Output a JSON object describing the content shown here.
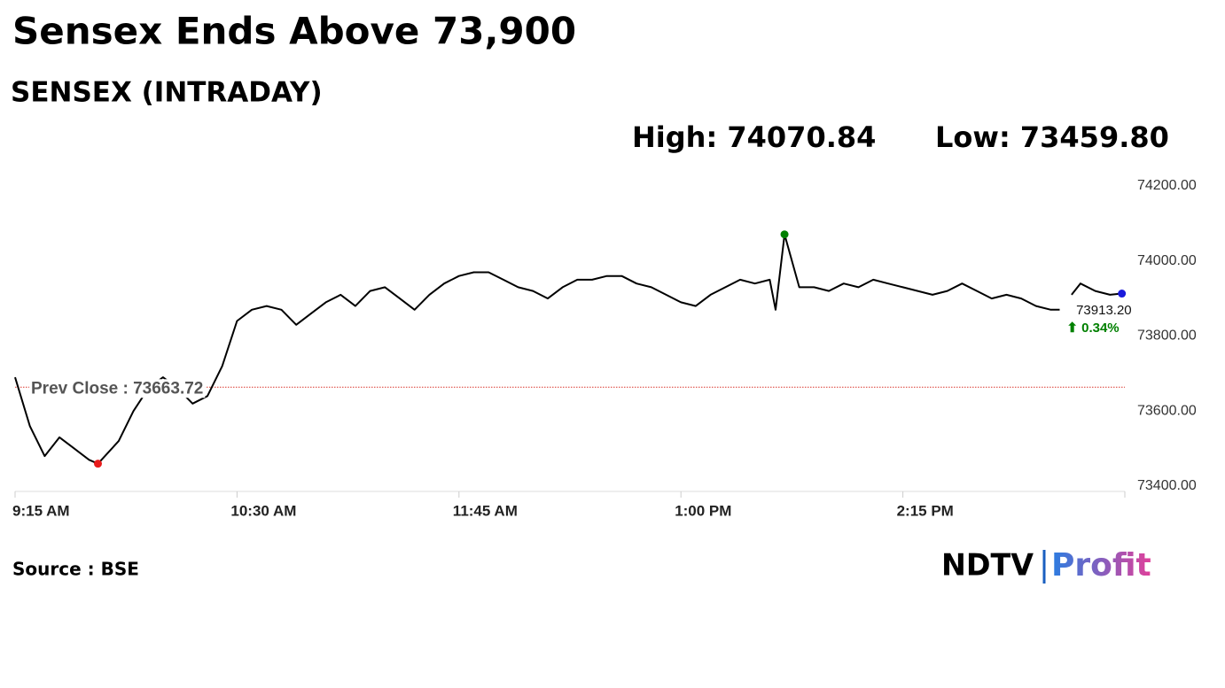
{
  "chart_data": {
    "type": "line",
    "title": "Sensex Ends Above 73,900",
    "subtitle": "SENSEX (INTRADAY)",
    "high": {
      "x": "13:35",
      "value": 74070.84,
      "label": "High: 74070.84",
      "color": "#008000"
    },
    "low": {
      "x": "09:43",
      "value": 73459.8,
      "label": "Low: 73459.80",
      "color": "#e81c1c"
    },
    "last": {
      "x": "15:29",
      "value": 73913.2,
      "label": "73913.20",
      "color": "#1a1adb"
    },
    "change": {
      "value": 0.34,
      "label": "⬆ 0.34%",
      "color": "#008000"
    },
    "reference_line": {
      "value": 73663.72,
      "label": "Prev Close : 73663.72",
      "color": "#d9342b"
    },
    "source": "Source : BSE",
    "brand": [
      "NDTV",
      "Profit"
    ],
    "x": [
      "09:15",
      "09:20",
      "09:25",
      "09:30",
      "09:35",
      "09:40",
      "09:43",
      "09:50",
      "09:55",
      "10:00",
      "10:05",
      "10:10",
      "10:15",
      "10:20",
      "10:25",
      "10:30",
      "10:35",
      "10:40",
      "10:45",
      "10:50",
      "10:55",
      "11:00",
      "11:05",
      "11:10",
      "11:15",
      "11:20",
      "11:25",
      "11:30",
      "11:35",
      "11:40",
      "11:45",
      "11:50",
      "11:55",
      "12:00",
      "12:05",
      "12:10",
      "12:15",
      "12:20",
      "12:25",
      "12:30",
      "12:35",
      "12:40",
      "12:45",
      "12:50",
      "12:55",
      "13:00",
      "13:05",
      "13:10",
      "13:15",
      "13:20",
      "13:25",
      "13:30",
      "13:32",
      "13:35",
      "13:40",
      "13:45",
      "13:50",
      "13:55",
      "14:00",
      "14:05",
      "14:10",
      "14:15",
      "14:20",
      "14:25",
      "14:30",
      "14:35",
      "14:40",
      "14:45",
      "14:50",
      "14:55",
      "15:00",
      "15:05",
      "15:08",
      "15:10",
      "15:12",
      "15:15",
      "15:20",
      "15:25",
      "15:29"
    ],
    "series": [
      {
        "name": "SENSEX",
        "color": "#000000",
        "values": [
          73690,
          73560,
          73480,
          73530,
          73500,
          73470,
          73459.8,
          73520,
          73600,
          73660,
          73690,
          73660,
          73620,
          73640,
          73720,
          73840,
          73870,
          73880,
          73870,
          73830,
          73860,
          73890,
          73910,
          73880,
          73920,
          73930,
          73900,
          73870,
          73910,
          73940,
          73960,
          73970,
          73970,
          73950,
          73930,
          73920,
          73900,
          73930,
          73950,
          73950,
          73960,
          73960,
          73940,
          73930,
          73910,
          73890,
          73880,
          73910,
          73930,
          73950,
          73940,
          73950,
          73870,
          74070.84,
          73930,
          73930,
          73920,
          73940,
          73930,
          73950,
          73940,
          73930,
          73920,
          73910,
          73920,
          73940,
          73920,
          73900,
          73910,
          73900,
          73880,
          73870,
          73870,
          null,
          73910,
          73940,
          73920,
          73910,
          73913.2
        ]
      }
    ],
    "xlim": [
      "09:15",
      "15:30"
    ],
    "xticks": [
      {
        "value": "09:15",
        "label": "9:15 AM"
      },
      {
        "value": "10:30",
        "label": "10:30 AM"
      },
      {
        "value": "11:45",
        "label": "11:45 AM"
      },
      {
        "value": "13:00",
        "label": "1:00 PM"
      },
      {
        "value": "14:15",
        "label": "2:15 PM"
      }
    ],
    "ylim": [
      73400,
      74200
    ],
    "yticks": [
      {
        "value": 73400,
        "label": "73400.00"
      },
      {
        "value": 73600,
        "label": "73600.00"
      },
      {
        "value": 73800,
        "label": "73800.00"
      },
      {
        "value": 74000,
        "label": "74000.00"
      },
      {
        "value": 74200,
        "label": "74200.00"
      }
    ]
  }
}
